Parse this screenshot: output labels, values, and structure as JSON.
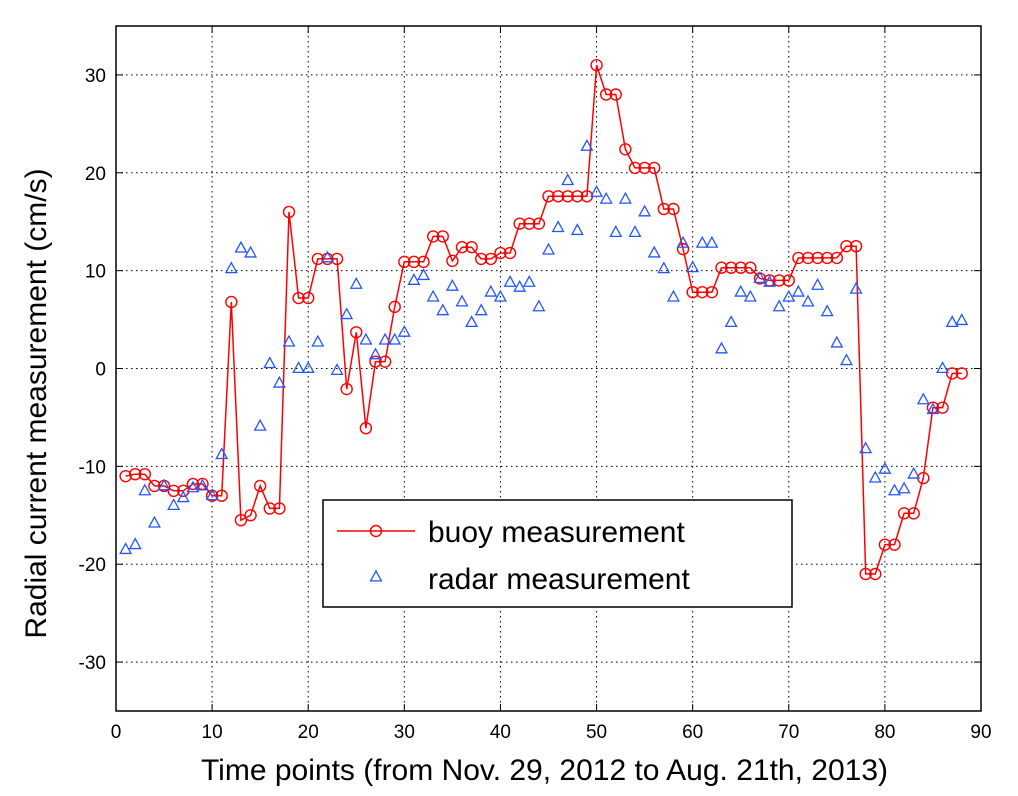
{
  "chart_data": {
    "type": "line",
    "xlabel": "Time points (from Nov. 29, 2012 to Aug. 21th, 2013)",
    "ylabel": "Radial current measurement (cm/s)",
    "xlim": [
      0,
      90
    ],
    "ylim": [
      -35,
      35
    ],
    "xticks": [
      0,
      10,
      20,
      30,
      40,
      50,
      60,
      70,
      80,
      90
    ],
    "yticks": [
      -30,
      -20,
      -10,
      0,
      10,
      20,
      30
    ],
    "grid": true,
    "legend_position": "lower-center",
    "x": [
      1,
      2,
      3,
      4,
      5,
      6,
      7,
      8,
      9,
      10,
      11,
      12,
      13,
      14,
      15,
      16,
      17,
      18,
      19,
      20,
      21,
      22,
      23,
      24,
      25,
      26,
      27,
      28,
      29,
      30,
      31,
      32,
      33,
      34,
      35,
      36,
      37,
      38,
      39,
      40,
      41,
      42,
      43,
      44,
      45,
      46,
      47,
      48,
      49,
      50,
      51,
      52,
      53,
      54,
      55,
      56,
      57,
      58,
      59,
      60,
      61,
      62,
      63,
      64,
      65,
      66,
      67,
      68,
      69,
      70,
      71,
      72,
      73,
      74,
      75,
      76,
      77,
      78,
      79,
      80,
      81,
      82,
      83,
      84,
      85,
      86,
      87,
      88
    ],
    "series": [
      {
        "name": "buoy measurement",
        "style": "line-circle",
        "color": "#ff0000",
        "values": [
          -11,
          -10.8,
          -10.8,
          -12,
          -12,
          -12.5,
          -12.5,
          -11.8,
          -11.8,
          -13,
          -13,
          6.8,
          -15.5,
          -15,
          -12,
          -14.3,
          -14.3,
          16,
          7.2,
          7.2,
          11.2,
          11.2,
          11.2,
          -2.1,
          3.7,
          -6.1,
          0.7,
          0.7,
          6.3,
          10.9,
          10.9,
          10.9,
          13.5,
          13.5,
          11,
          12.4,
          12.4,
          11.2,
          11.2,
          11.8,
          11.8,
          14.8,
          14.8,
          14.8,
          17.6,
          17.6,
          17.6,
          17.6,
          17.6,
          31,
          28,
          28,
          22.4,
          20.5,
          20.5,
          20.5,
          16.3,
          16.3,
          12.2,
          7.8,
          7.8,
          7.8,
          10.3,
          10.3,
          10.3,
          10.3,
          9.2,
          9,
          9,
          9,
          11.3,
          11.3,
          11.3,
          11.3,
          11.3,
          12.5,
          12.5,
          -21,
          -21,
          -18,
          -18,
          -14.8,
          -14.8,
          -11.2,
          -4,
          -4,
          -0.5,
          -0.5
        ]
      },
      {
        "name": "radar measurement",
        "style": "triangle-marker",
        "color": "#2255ff",
        "values": [
          -18.5,
          -18,
          -12.5,
          -15.8,
          -12,
          -14,
          -13.2,
          -12.2,
          -12,
          -13,
          -8.8,
          10.2,
          12.3,
          11.8,
          -5.9,
          0.5,
          -1.5,
          2.7,
          0,
          0,
          2.7,
          11.3,
          -0.2,
          5.5,
          8.6,
          2.9,
          1.4,
          2.9,
          2.9,
          3.7,
          9,
          9.5,
          7.3,
          5.9,
          8.4,
          6.8,
          4.7,
          5.9,
          7.8,
          7.3,
          8.8,
          8.3,
          8.8,
          6.3,
          12.1,
          14.4,
          19.2,
          14.1,
          22.7,
          18,
          17.3,
          13.9,
          17.3,
          13.9,
          16,
          11.8,
          10.2,
          7.3,
          12.8,
          10.3,
          12.8,
          12.8,
          2,
          4.7,
          7.8,
          7.3,
          9.2,
          8.8,
          6.3,
          7.3,
          7.8,
          6.8,
          8.5,
          5.8,
          2.6,
          0.8,
          8.1,
          -8.2,
          -11.2,
          -10.3,
          -12.5,
          -12.3,
          -10.8,
          -3.2,
          -4.2,
          0,
          4.7,
          4.9
        ]
      }
    ]
  }
}
